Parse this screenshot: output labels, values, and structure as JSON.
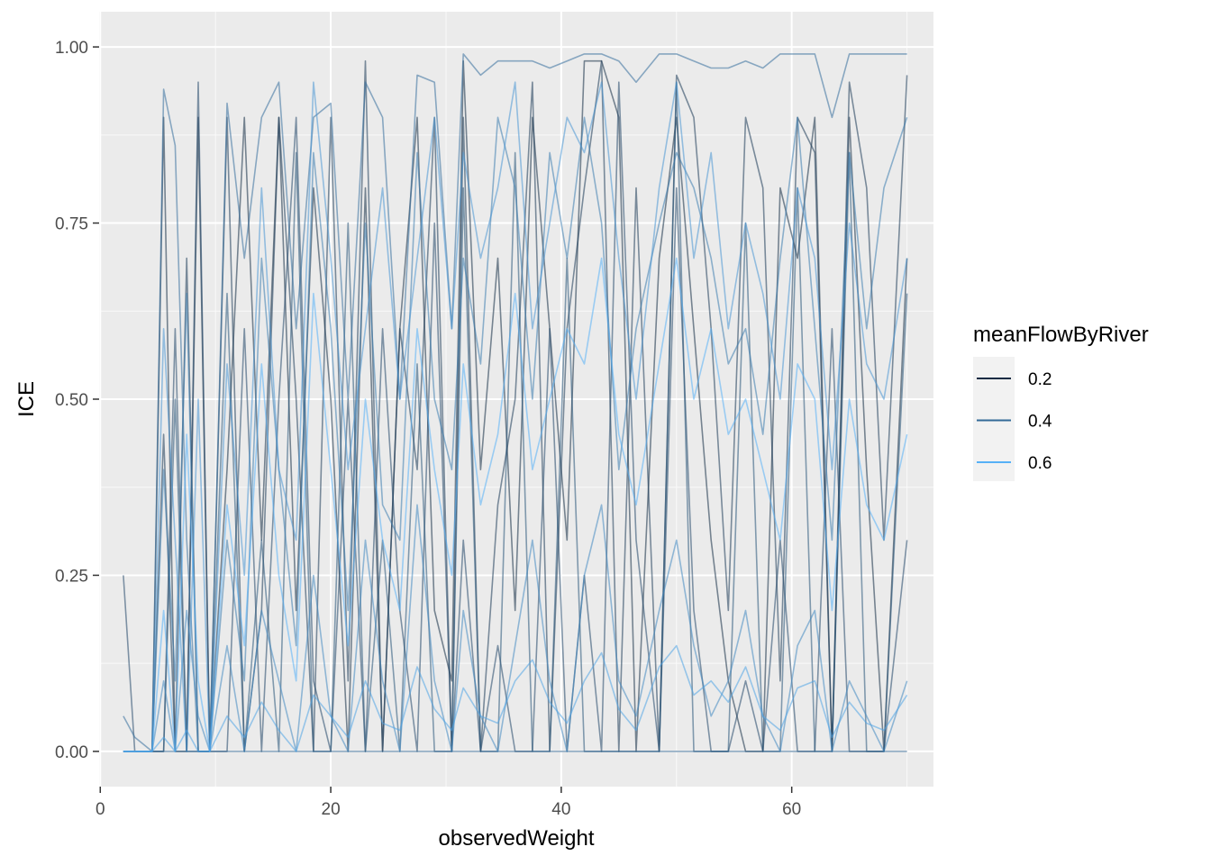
{
  "chart_data": {
    "type": "line",
    "title": "",
    "xlabel": "observedWeight",
    "ylabel": "ICE",
    "xlim": [
      -0.1,
      72.3
    ],
    "ylim": [
      -0.05,
      1.05
    ],
    "x_ticks": [
      0,
      20,
      40,
      60
    ],
    "x_tick_labels": [
      "0",
      "20",
      "40",
      "60"
    ],
    "y_ticks": [
      0,
      0.25,
      0.5,
      0.75,
      1
    ],
    "y_tick_labels": [
      "0.00",
      "0.25",
      "0.50",
      "0.75",
      "1.00"
    ],
    "grid": true,
    "background": "#ebebeb",
    "legend": {
      "title": "meanFlowByRiver",
      "position": "right",
      "entries": [
        {
          "label": "0.2",
          "value": 0.2,
          "color": "#132b43"
        },
        {
          "label": "0.4",
          "value": 0.4,
          "color": "#336a98"
        },
        {
          "label": "0.6",
          "value": 0.6,
          "color": "#56b1f7"
        }
      ]
    },
    "x": [
      2.0,
      3.0,
      4.5,
      5.5,
      6.5,
      7.5,
      8.5,
      9.5,
      11.0,
      12.5,
      14.0,
      15.5,
      17.0,
      18.5,
      20.0,
      21.5,
      23.0,
      24.5,
      26.0,
      27.5,
      29.0,
      30.5,
      31.5,
      33.0,
      34.5,
      36.0,
      37.5,
      39.0,
      40.5,
      42.0,
      43.5,
      45.0,
      46.5,
      48.5,
      50.0,
      51.5,
      53.0,
      54.5,
      56.0,
      57.5,
      59.0,
      60.5,
      62.0,
      63.5,
      65.0,
      66.5,
      68.0,
      70.0
    ],
    "series": [
      {
        "color_value": 0.15,
        "values": [
          0.0,
          0.0,
          0.0,
          0.9,
          0.0,
          0.0,
          0.9,
          0.0,
          0.4,
          0.9,
          0.3,
          0.9,
          0.2,
          0.8,
          0.5,
          0.0,
          0.8,
          0.0,
          0.6,
          0.9,
          0.2,
          0.1,
          0.98,
          0.4,
          0.7,
          0.2,
          0.9,
          0.6,
          0.3,
          0.98,
          0.98,
          0.9,
          0.0,
          0.7,
          0.9,
          0.6,
          0.3,
          0.1,
          0.0,
          0.0,
          0.8,
          0.7,
          0.9,
          0.0,
          0.9,
          0.4,
          0.0,
          0.7
        ]
      },
      {
        "color_value": 0.2,
        "values": [
          0.0,
          0.0,
          0.0,
          0.45,
          0.0,
          0.7,
          0.0,
          0.0,
          0.9,
          0.0,
          0.2,
          0.9,
          0.5,
          0.0,
          0.9,
          0.1,
          0.98,
          0.0,
          0.6,
          0.4,
          0.9,
          0.0,
          0.9,
          0.0,
          0.35,
          0.5,
          0.95,
          0.0,
          0.6,
          0.8,
          0.98,
          0.0,
          0.8,
          0.0,
          0.96,
          0.9,
          0.6,
          0.2,
          0.9,
          0.8,
          0.1,
          0.9,
          0.85,
          0.0,
          0.95,
          0.8,
          0.3,
          0.96
        ]
      },
      {
        "color_value": 0.25,
        "values": [
          0.25,
          0.0,
          0.0,
          0.0,
          0.6,
          0.0,
          0.95,
          0.0,
          0.0,
          0.6,
          0.0,
          0.5,
          0.9,
          0.1,
          0.0,
          0.5,
          0.0,
          0.6,
          0.2,
          0.0,
          0.75,
          0.0,
          0.3,
          0.0,
          0.15,
          0.0,
          0.0,
          0.6,
          0.0,
          0.25,
          0.0,
          0.95,
          0.3,
          0.0,
          0.8,
          0.2,
          0.0,
          0.0,
          0.1,
          0.0,
          0.3,
          0.0,
          0.0,
          0.6,
          0.0,
          0.0,
          0.0,
          0.3
        ]
      },
      {
        "color_value": 0.3,
        "values": [
          0.0,
          0.0,
          0.0,
          0.0,
          0.5,
          0.0,
          0.0,
          0.0,
          0.65,
          0.0,
          0.3,
          0.0,
          0.85,
          0.0,
          0.0,
          0.75,
          0.0,
          0.3,
          0.0,
          0.55,
          0.0,
          0.0,
          0.8,
          0.0,
          0.0,
          0.85,
          0.0,
          0.0,
          0.7,
          0.0,
          0.0,
          0.0,
          0.0,
          0.0,
          0.95,
          0.0,
          0.0,
          0.0,
          0.75,
          0.0,
          0.0,
          0.8,
          0.0,
          0.0,
          0.85,
          0.0,
          0.0,
          0.65
        ]
      },
      {
        "color_value": 0.35,
        "values": [
          0.0,
          0.0,
          0.0,
          0.0,
          0.0,
          0.0,
          0.0,
          0.0,
          0.0,
          0.0,
          0.0,
          0.0,
          0.0,
          0.0,
          0.0,
          0.0,
          0.0,
          0.0,
          0.0,
          0.0,
          0.0,
          0.0,
          0.0,
          0.0,
          0.0,
          0.0,
          0.0,
          0.0,
          0.0,
          0.0,
          0.0,
          0.0,
          0.0,
          0.0,
          0.0,
          0.0,
          0.0,
          0.0,
          0.0,
          0.0,
          0.0,
          0.0,
          0.0,
          0.0,
          0.0,
          0.0,
          0.0,
          0.0
        ]
      },
      {
        "color_value": 0.4,
        "values": [
          0.05,
          0.02,
          0.0,
          0.94,
          0.86,
          0.3,
          0.0,
          0.0,
          0.92,
          0.7,
          0.9,
          0.95,
          0.6,
          0.9,
          0.92,
          0.5,
          0.95,
          0.9,
          0.5,
          0.96,
          0.95,
          0.6,
          0.99,
          0.96,
          0.98,
          0.98,
          0.98,
          0.97,
          0.98,
          0.99,
          0.99,
          0.98,
          0.95,
          0.99,
          0.99,
          0.98,
          0.97,
          0.97,
          0.98,
          0.97,
          0.99,
          0.99,
          0.99,
          0.9,
          0.99,
          0.99,
          0.99,
          0.99
        ]
      },
      {
        "color_value": 0.45,
        "values": [
          0.0,
          0.0,
          0.0,
          0.4,
          0.1,
          0.65,
          0.0,
          0.0,
          0.3,
          0.1,
          0.7,
          0.4,
          0.15,
          0.85,
          0.6,
          0.2,
          0.75,
          0.35,
          0.3,
          0.85,
          0.5,
          0.4,
          0.7,
          0.55,
          0.9,
          0.8,
          0.5,
          0.85,
          0.7,
          0.9,
          0.75,
          0.4,
          0.6,
          0.75,
          0.85,
          0.8,
          0.7,
          0.55,
          0.6,
          0.45,
          0.7,
          0.9,
          0.6,
          0.3,
          0.85,
          0.6,
          0.8,
          0.9
        ]
      },
      {
        "color_value": 0.5,
        "values": [
          0.0,
          0.0,
          0.0,
          0.1,
          0.0,
          0.2,
          0.05,
          0.0,
          0.15,
          0.0,
          0.2,
          0.1,
          0.0,
          0.25,
          0.05,
          0.0,
          0.3,
          0.1,
          0.0,
          0.35,
          0.1,
          0.0,
          0.2,
          0.05,
          0.0,
          0.15,
          0.3,
          0.1,
          0.0,
          0.25,
          0.35,
          0.1,
          0.05,
          0.2,
          0.3,
          0.15,
          0.05,
          0.1,
          0.2,
          0.05,
          0.0,
          0.15,
          0.2,
          0.0,
          0.1,
          0.05,
          0.0,
          0.1
        ]
      },
      {
        "color_value": 0.55,
        "values": [
          0.0,
          0.0,
          0.0,
          0.6,
          0.3,
          0.0,
          0.5,
          0.0,
          0.55,
          0.25,
          0.8,
          0.4,
          0.3,
          0.95,
          0.7,
          0.4,
          0.6,
          0.8,
          0.5,
          0.7,
          0.9,
          0.6,
          0.85,
          0.7,
          0.8,
          0.95,
          0.6,
          0.75,
          0.9,
          0.85,
          0.95,
          0.7,
          0.5,
          0.8,
          0.95,
          0.7,
          0.85,
          0.6,
          0.75,
          0.65,
          0.5,
          0.8,
          0.7,
          0.4,
          0.75,
          0.55,
          0.5,
          0.7
        ]
      },
      {
        "color_value": 0.6,
        "values": [
          0.0,
          0.0,
          0.0,
          0.02,
          0.0,
          0.03,
          0.0,
          0.0,
          0.05,
          0.02,
          0.07,
          0.03,
          0.0,
          0.08,
          0.05,
          0.02,
          0.1,
          0.04,
          0.03,
          0.12,
          0.06,
          0.03,
          0.09,
          0.05,
          0.04,
          0.1,
          0.13,
          0.07,
          0.04,
          0.1,
          0.14,
          0.06,
          0.03,
          0.12,
          0.15,
          0.08,
          0.1,
          0.07,
          0.12,
          0.05,
          0.03,
          0.09,
          0.1,
          0.02,
          0.07,
          0.04,
          0.03,
          0.08
        ]
      },
      {
        "color_value": 0.65,
        "values": [
          0.0,
          0.0,
          0.0,
          0.2,
          0.0,
          0.45,
          0.1,
          0.0,
          0.35,
          0.15,
          0.55,
          0.25,
          0.1,
          0.65,
          0.4,
          0.15,
          0.5,
          0.3,
          0.2,
          0.6,
          0.4,
          0.25,
          0.55,
          0.35,
          0.45,
          0.65,
          0.4,
          0.5,
          0.6,
          0.55,
          0.7,
          0.45,
          0.35,
          0.55,
          0.7,
          0.5,
          0.6,
          0.45,
          0.5,
          0.4,
          0.3,
          0.55,
          0.5,
          0.2,
          0.5,
          0.35,
          0.3,
          0.45
        ]
      }
    ]
  }
}
